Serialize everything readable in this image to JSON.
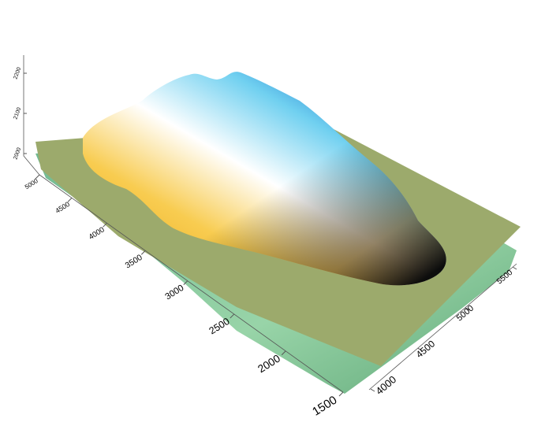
{
  "chart_data": {
    "type": "surface3d",
    "yticks": [
      5000,
      4500,
      4000,
      3500,
      3000,
      2500,
      2000,
      1500
    ],
    "ylim": [
      5000,
      1500
    ],
    "xticks": [
      4000,
      4500,
      5000,
      5500
    ],
    "xlim": [
      4000,
      5500
    ],
    "zticks": [
      2000,
      2100,
      2200
    ],
    "zlim": [
      2000,
      2200
    ]
  }
}
